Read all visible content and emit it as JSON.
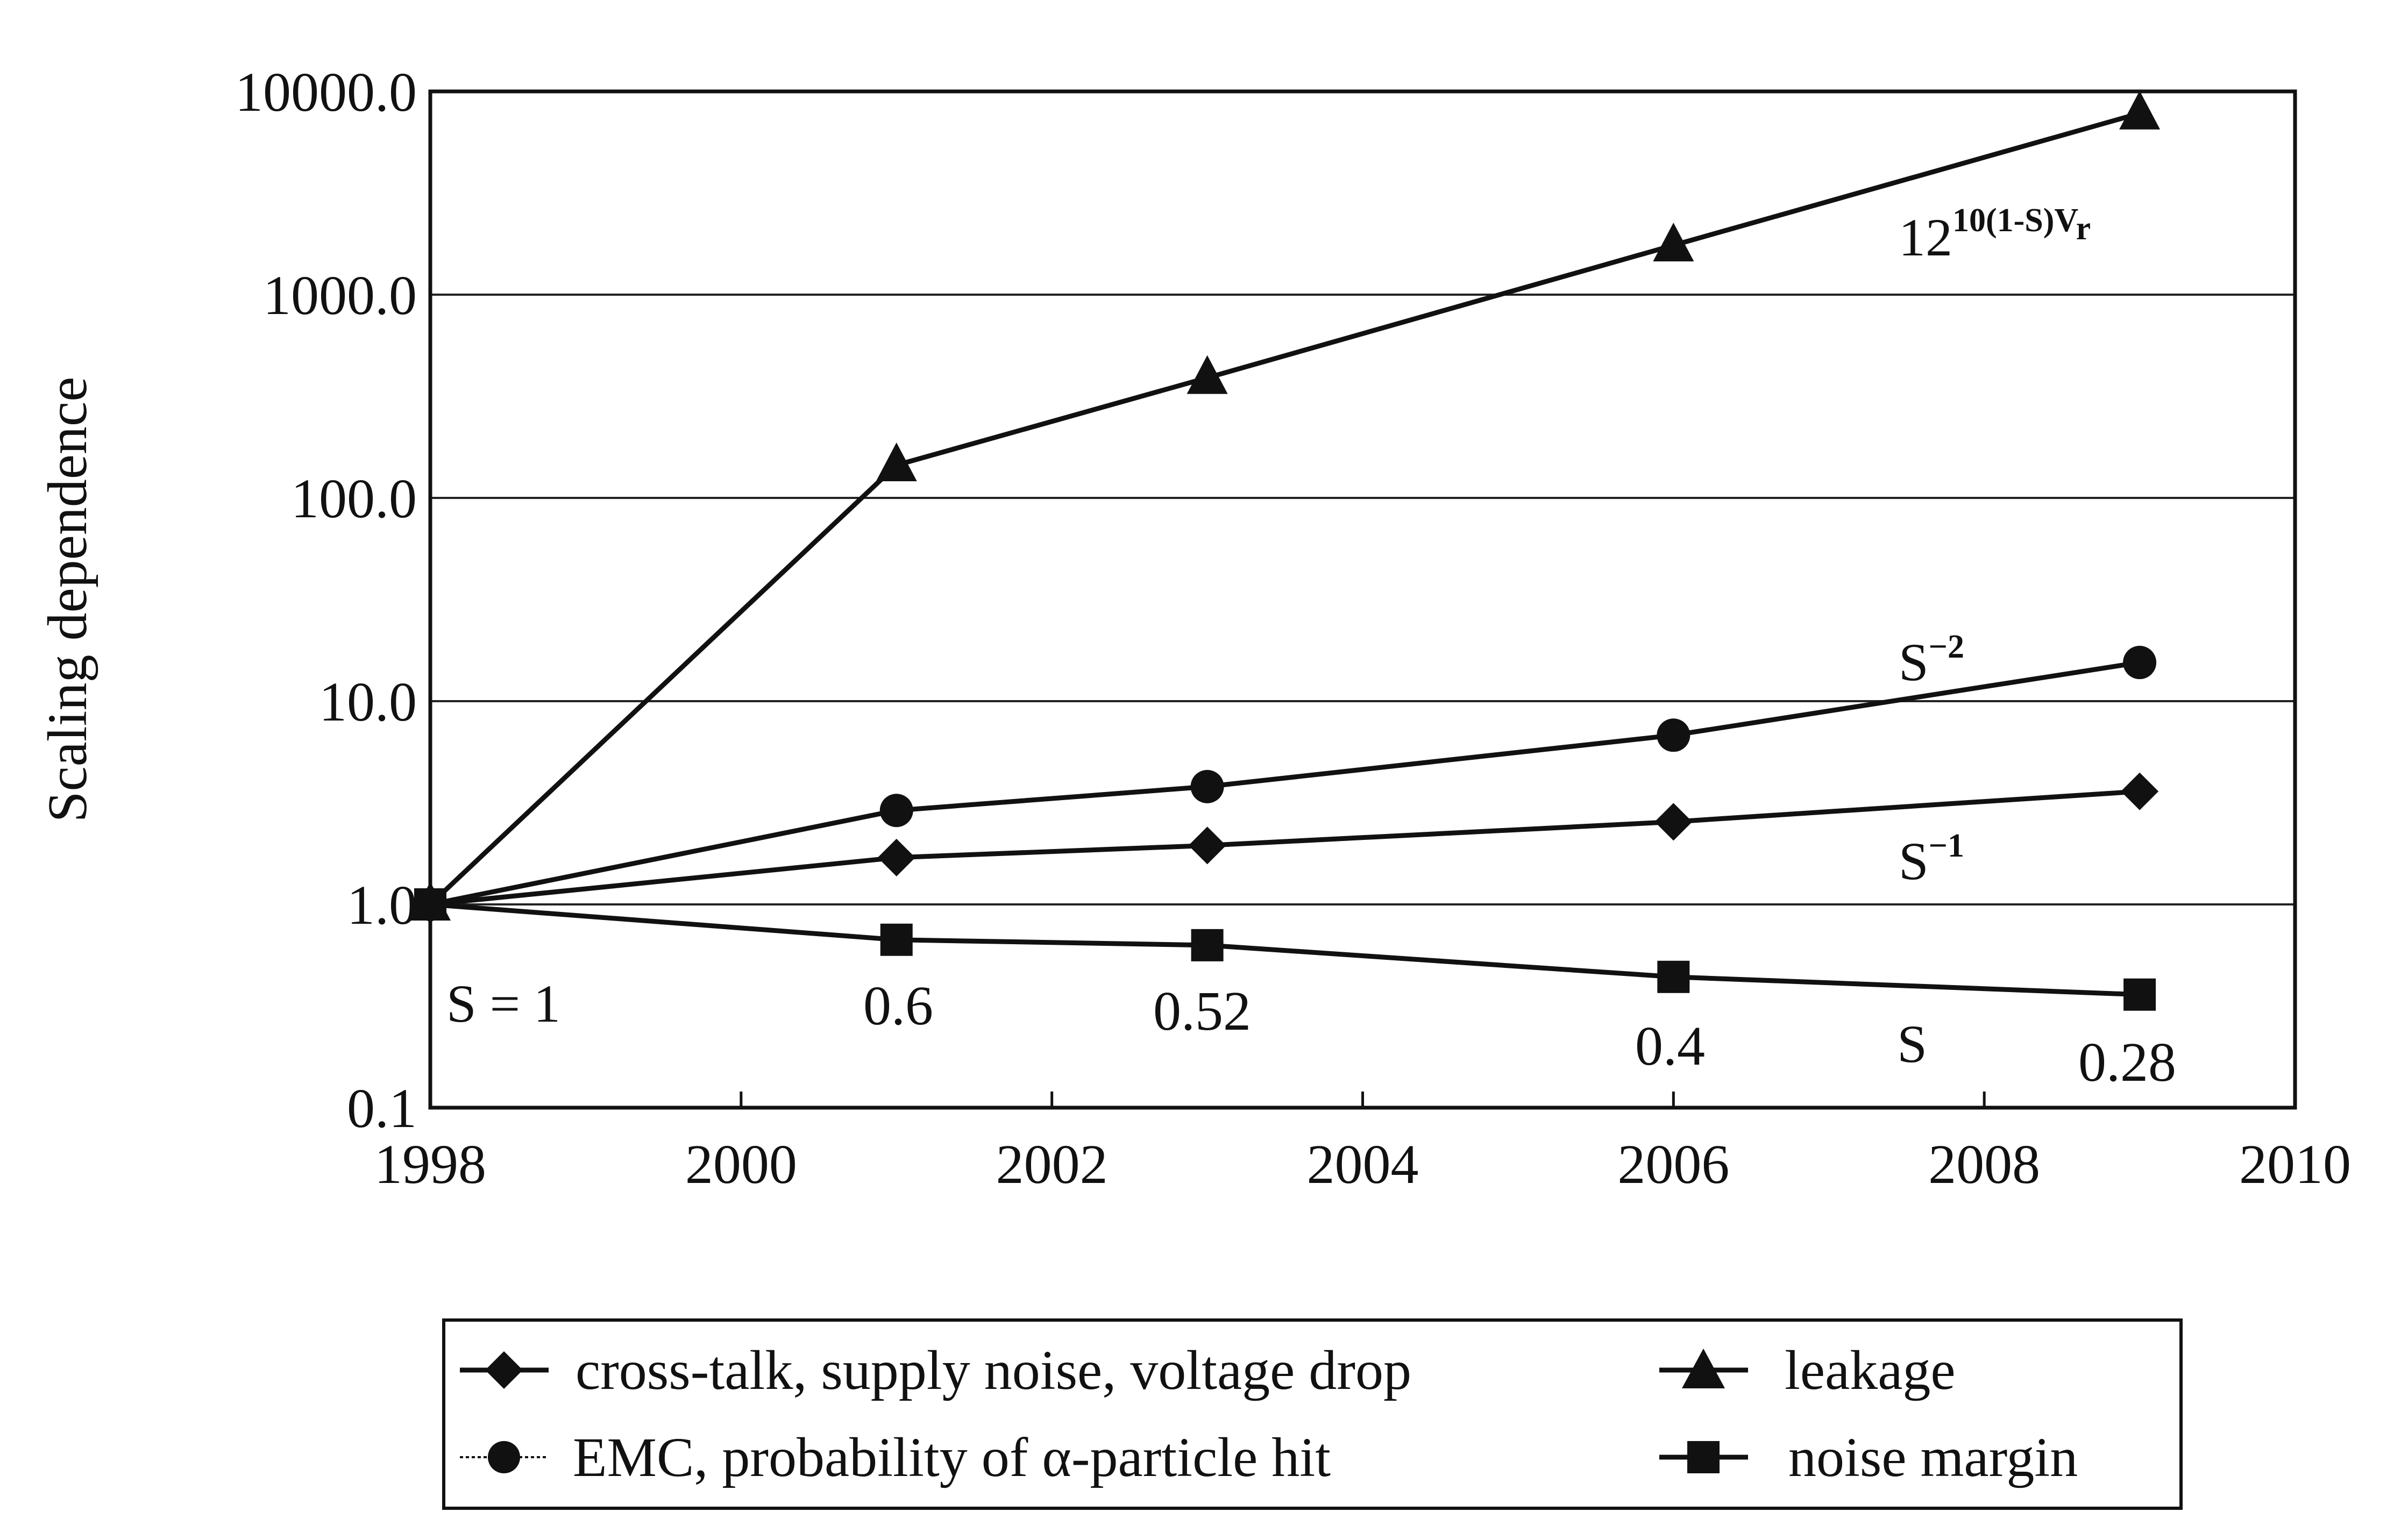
{
  "chart_data": {
    "type": "line",
    "ylabel": "Scaling dependence",
    "xlabel": "",
    "xlim": [
      1998,
      2010
    ],
    "ylim": [
      0.1,
      10000
    ],
    "yscale": "log",
    "grid": "horizontal",
    "legend_position": "bottom",
    "x_ticks": [
      "1998",
      "2000",
      "2002",
      "2004",
      "2006",
      "2008",
      "2010"
    ],
    "y_ticks": [
      "0.1",
      "1.0",
      "10.0",
      "100.0",
      "1000.0",
      "10000.0"
    ],
    "x": [
      1998,
      2001,
      2003,
      2006,
      2009
    ],
    "series": [
      {
        "name": "cross-talk, supply noise, voltage drop",
        "marker": "diamond",
        "values": [
          1.0,
          1.7,
          1.95,
          2.55,
          3.6
        ]
      },
      {
        "name": "leakage",
        "marker": "triangle",
        "values": [
          1.0,
          145,
          390,
          1750,
          7800
        ]
      },
      {
        "name": "EMC, probability of α-particle hit",
        "marker": "circle",
        "values": [
          1.0,
          2.9,
          3.8,
          6.8,
          15.5
        ]
      },
      {
        "name": "noise margin",
        "marker": "square",
        "values": [
          1.0,
          0.67,
          0.63,
          0.44,
          0.36
        ]
      }
    ],
    "annotations": {
      "leakage_formula_base": "12",
      "leakage_formula_exp": "10(1-S)V",
      "leakage_formula_sub": "r",
      "s_inv2_base": "S",
      "s_inv2_exp": "−2",
      "s_inv1_base": "S",
      "s_inv1_exp": "−1",
      "s_label": "S",
      "s_eq_1": "S = 1",
      "s_vals": [
        "0.6",
        "0.52",
        "0.4",
        "0.28"
      ]
    }
  }
}
